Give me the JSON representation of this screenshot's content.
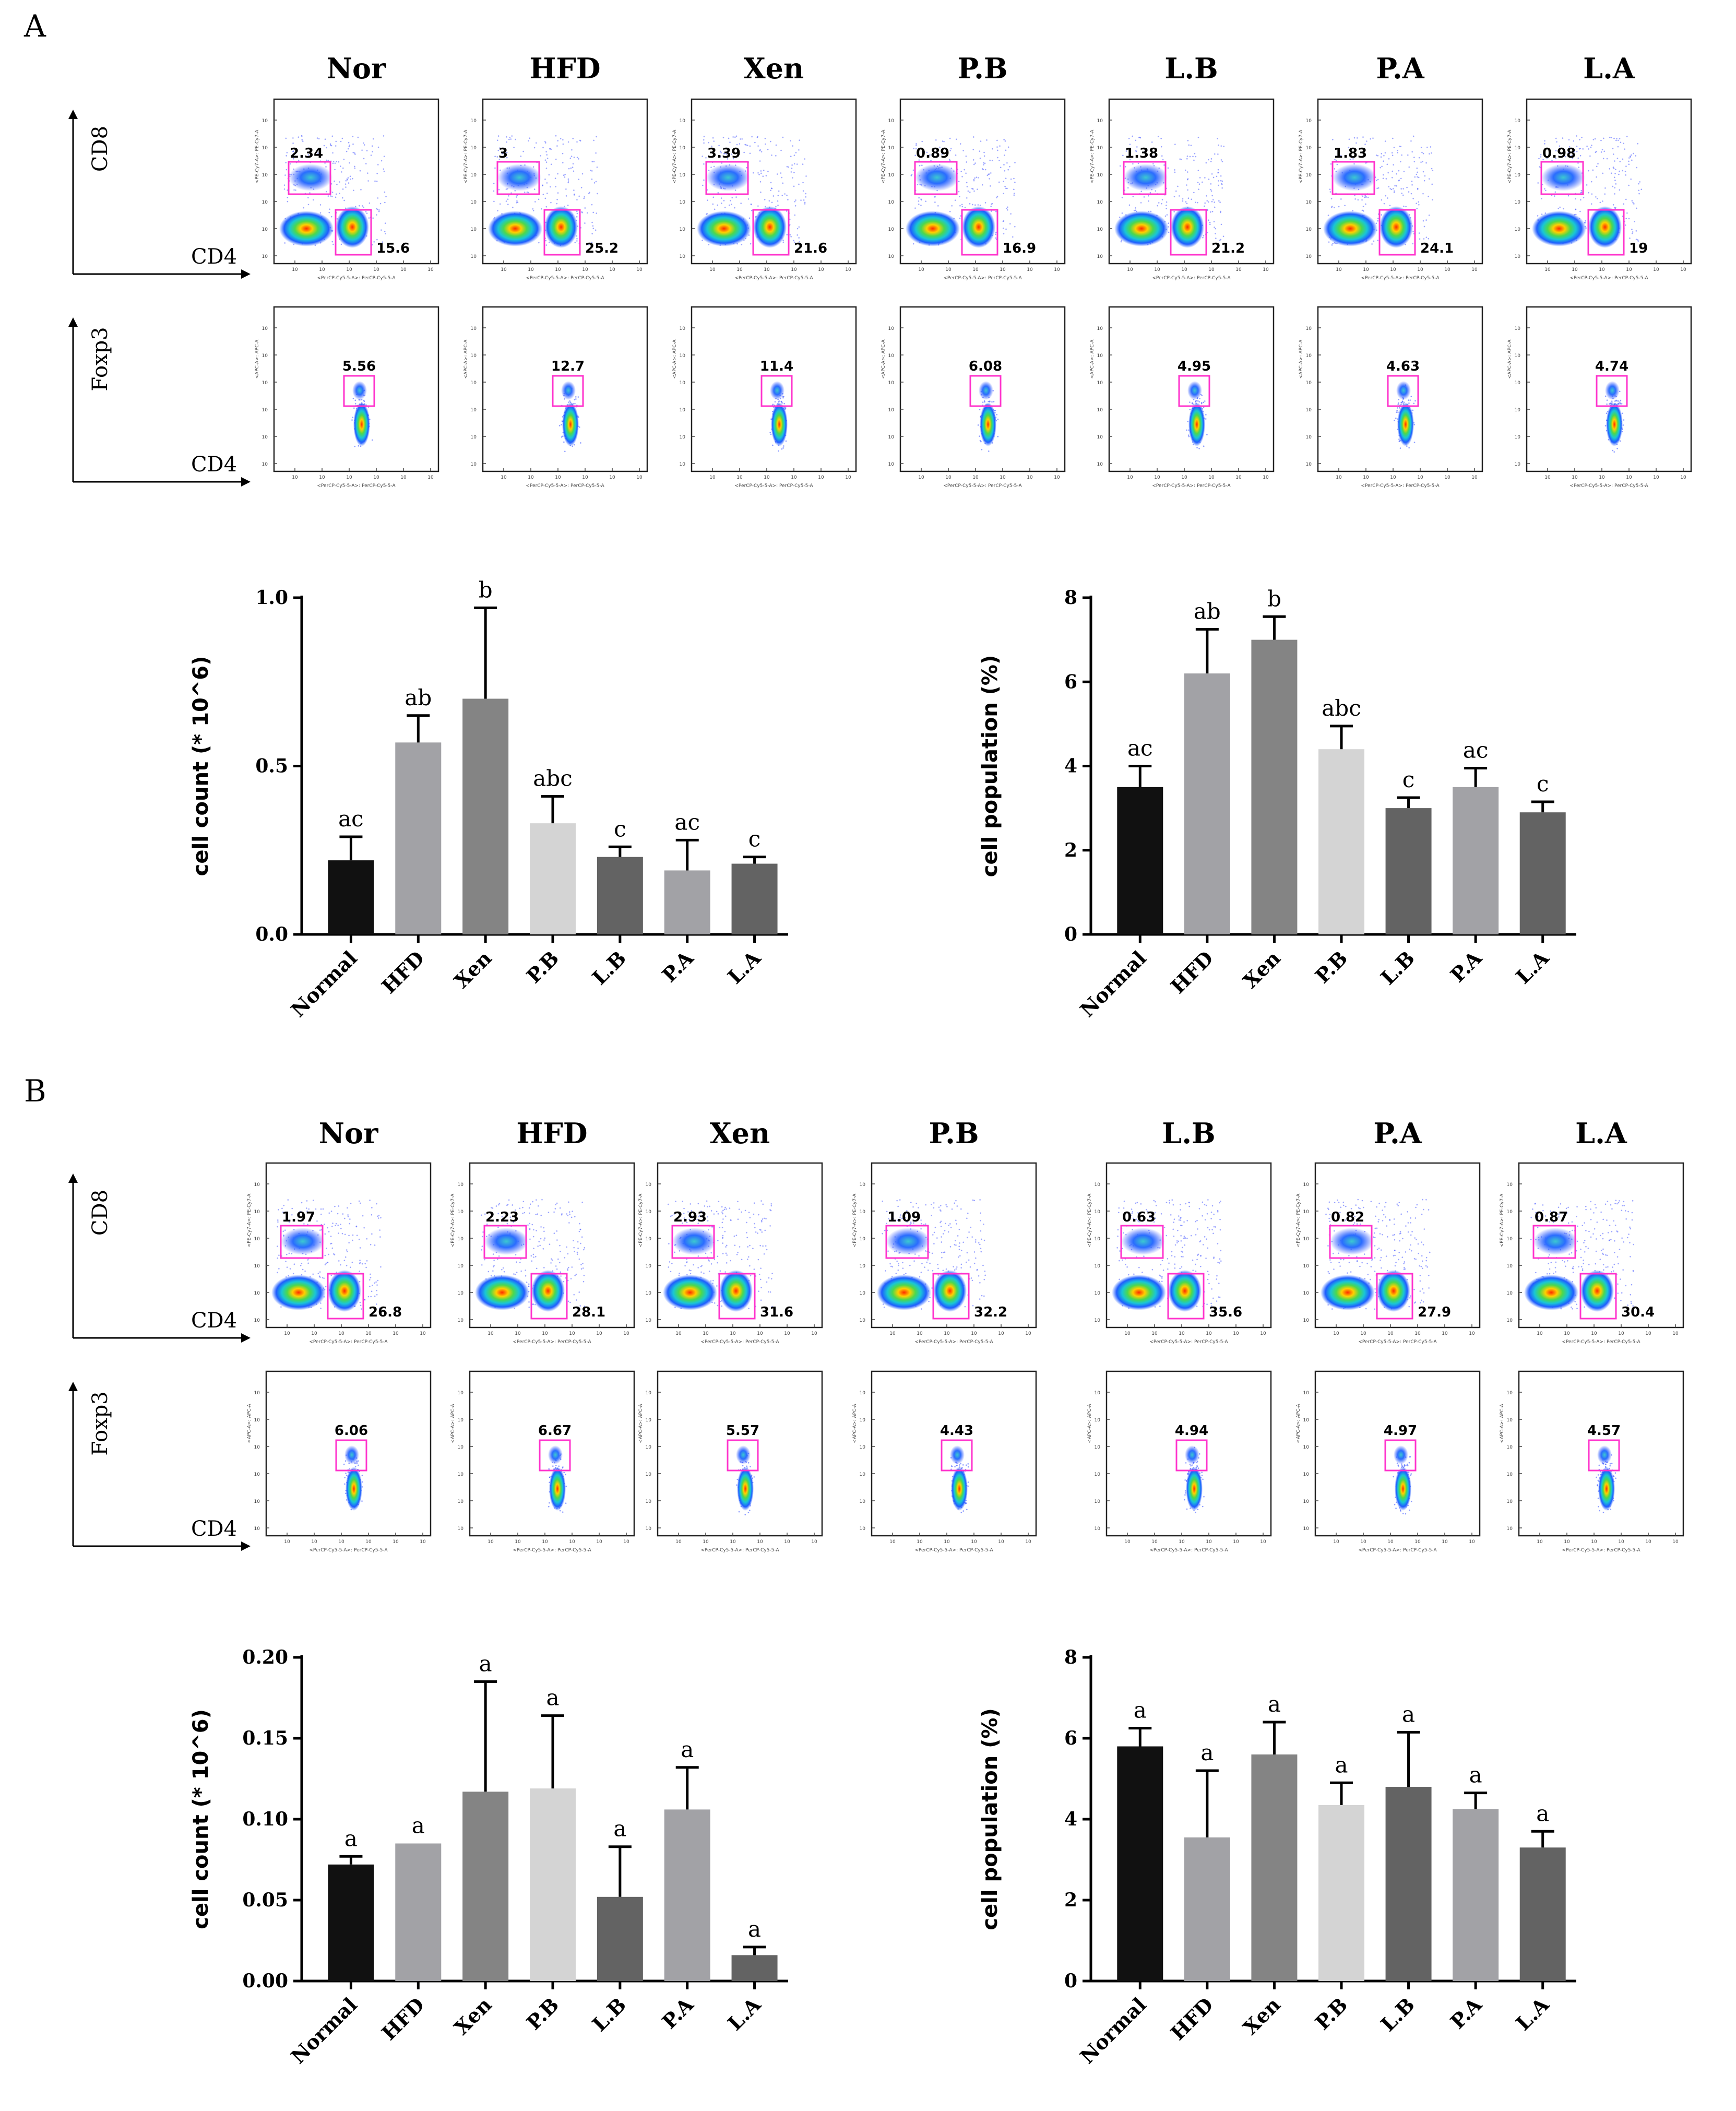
{
  "groups": [
    "Nor",
    "HFD",
    "Xen",
    "P.B",
    "L.B",
    "P.A",
    "L.A"
  ],
  "tick_microlabels": {
    "cd8_ylabel": "<PE-Cy7-A>: PE-Cy7-A",
    "foxp3_ylabel": "<APC-A>: APC-A",
    "cd4_xlabel": "<PerCP-Cy5-5-A>: PerCP-Cy5-5-A"
  },
  "panels": [
    {
      "label": "A",
      "axes": {
        "cd8": "CD8",
        "foxp3": "Foxp3",
        "cd4_top": "CD4",
        "cd4_bottom": "CD4"
      },
      "cd8_percent": [
        "2.34",
        "3",
        "3.39",
        "0.89",
        "1.38",
        "1.83",
        "0.98"
      ],
      "cd4_percent": [
        "15.6",
        "25.2",
        "21.6",
        "16.9",
        "21.2",
        "24.1",
        "19"
      ],
      "foxp3_percent": [
        "5.56",
        "12.7",
        "11.4",
        "6.08",
        "4.95",
        "4.63",
        "4.74"
      ]
    },
    {
      "label": "B",
      "axes": {
        "cd8": "CD8",
        "foxp3": "Foxp3",
        "cd4_top": "CD4",
        "cd4_bottom": "CD4"
      },
      "cd8_percent": [
        "1.97",
        "2.23",
        "2.93",
        "1.09",
        "0.63",
        "0.82",
        "0.87"
      ],
      "cd4_percent": [
        "26.8",
        "28.1",
        "31.6",
        "32.2",
        "35.6",
        "27.9",
        "30.4"
      ],
      "foxp3_percent": [
        "6.06",
        "6.67",
        "5.57",
        "4.43",
        "4.94",
        "4.97",
        "4.57"
      ]
    }
  ],
  "colors": {
    "gate": "#ff33cc",
    "bar_fills": [
      "#111111",
      "#a2a2a6",
      "#848484",
      "#d4d4d4",
      "#636363",
      "#a2a2a6",
      "#636363"
    ]
  },
  "chart_data": [
    {
      "type": "bar",
      "panel": "A",
      "title": "",
      "xlabel": "",
      "ylabel": "cell count (* 10^6)",
      "categories": [
        "Normal",
        "HFD",
        "Xen",
        "P.B",
        "L.B",
        "P.A",
        "L.A"
      ],
      "values": [
        0.22,
        0.57,
        0.7,
        0.33,
        0.23,
        0.19,
        0.21
      ],
      "errors": [
        0.07,
        0.08,
        0.27,
        0.08,
        0.03,
        0.09,
        0.02
      ],
      "sig_letters": [
        "ac",
        "ab",
        "b",
        "abc",
        "c",
        "ac",
        "c"
      ],
      "ylim": [
        0,
        1.0
      ],
      "yticks": [
        0.0,
        0.5,
        1.0
      ],
      "ytick_labels": [
        "0.0",
        "0.5",
        "1.0"
      ]
    },
    {
      "type": "bar",
      "panel": "A",
      "title": "",
      "xlabel": "",
      "ylabel": "cell population (%)",
      "categories": [
        "Normal",
        "HFD",
        "Xen",
        "P.B",
        "L.B",
        "P.A",
        "L.A"
      ],
      "values": [
        3.5,
        6.2,
        7.0,
        4.4,
        3.0,
        3.5,
        2.9
      ],
      "errors": [
        0.5,
        1.05,
        0.55,
        0.55,
        0.25,
        0.45,
        0.25
      ],
      "sig_letters": [
        "ac",
        "ab",
        "b",
        "abc",
        "c",
        "ac",
        "c"
      ],
      "ylim": [
        0,
        8
      ],
      "yticks": [
        0,
        2,
        4,
        6,
        8
      ],
      "ytick_labels": [
        "0",
        "2",
        "4",
        "6",
        "8"
      ]
    },
    {
      "type": "bar",
      "panel": "B",
      "title": "",
      "xlabel": "",
      "ylabel": "cell count (* 10^6)",
      "categories": [
        "Normal",
        "HFD",
        "Xen",
        "P.B",
        "L.B",
        "P.A",
        "L.A"
      ],
      "values": [
        0.072,
        0.085,
        0.117,
        0.119,
        0.052,
        0.106,
        0.016
      ],
      "errors": [
        0.005,
        0.0,
        0.068,
        0.045,
        0.031,
        0.026,
        0.005
      ],
      "sig_letters": [
        "a",
        "a",
        "a",
        "a",
        "a",
        "a",
        "a"
      ],
      "ylim": [
        0,
        0.2
      ],
      "yticks": [
        0.0,
        0.05,
        0.1,
        0.15,
        0.2
      ],
      "ytick_labels": [
        "0.00",
        "0.05",
        "0.10",
        "0.15",
        "0.20"
      ]
    },
    {
      "type": "bar",
      "panel": "B",
      "title": "",
      "xlabel": "",
      "ylabel": "cell population (%)",
      "categories": [
        "Normal",
        "HFD",
        "Xen",
        "P.B",
        "L.B",
        "P.A",
        "L.A"
      ],
      "values": [
        5.8,
        3.55,
        5.6,
        4.35,
        4.8,
        4.25,
        3.3
      ],
      "errors": [
        0.45,
        1.65,
        0.8,
        0.55,
        1.35,
        0.4,
        0.4
      ],
      "sig_letters": [
        "a",
        "a",
        "a",
        "a",
        "a",
        "a",
        "a"
      ],
      "ylim": [
        0,
        8
      ],
      "yticks": [
        0,
        2,
        4,
        6,
        8
      ],
      "ytick_labels": [
        "0",
        "2",
        "4",
        "6",
        "8"
      ]
    }
  ]
}
